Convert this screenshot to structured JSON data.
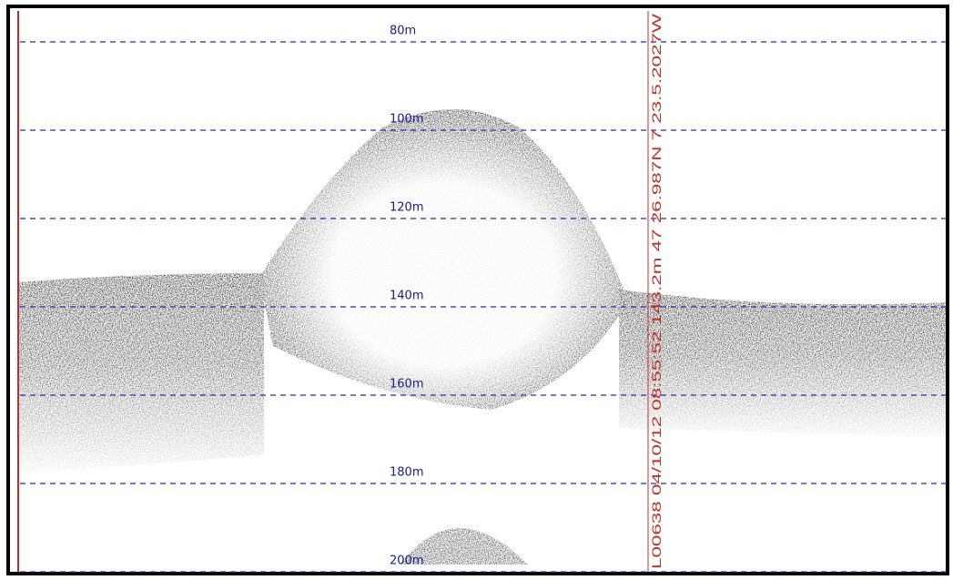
{
  "echogram": {
    "depth_labels": [
      "80m",
      "100m",
      "120m",
      "140m",
      "160m",
      "180m",
      "200m"
    ],
    "marker_text": "L00638 04/10/12 08:55:52 143.2m 47 26.987N 7 23.5.2027W"
  }
}
